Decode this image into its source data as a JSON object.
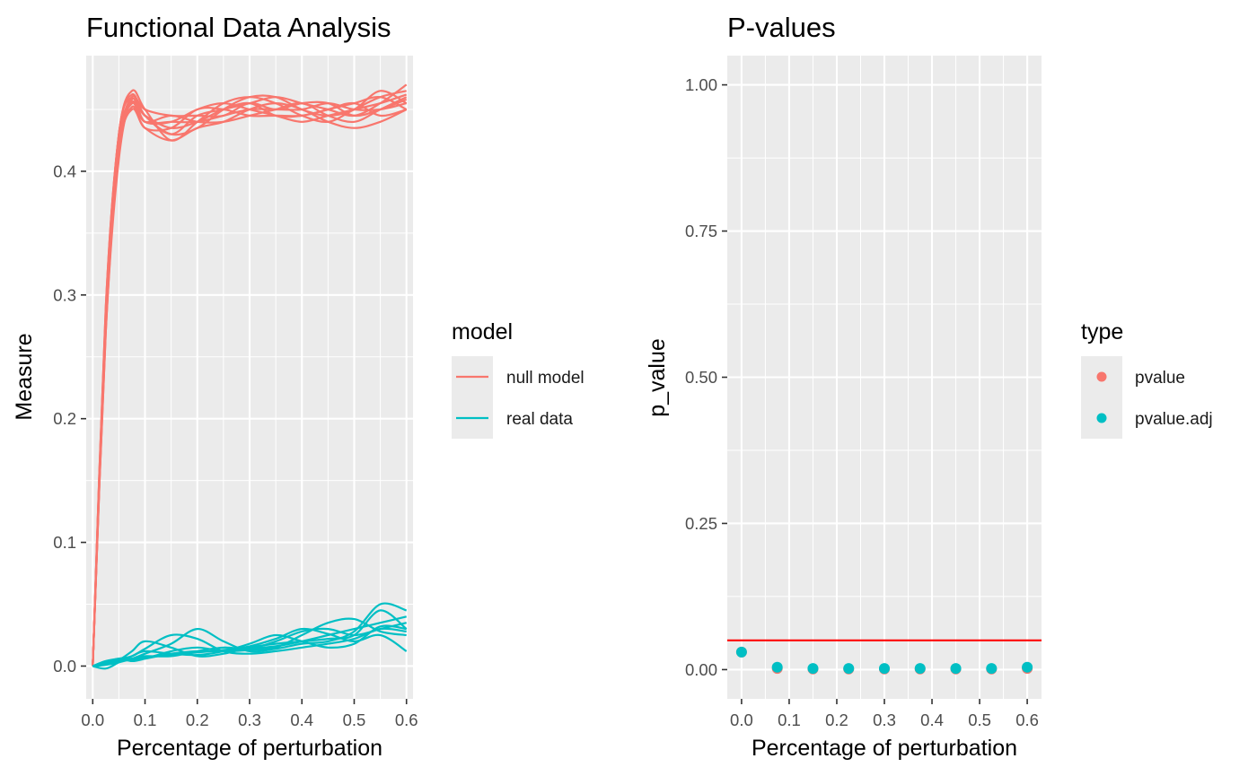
{
  "colors": {
    "null_model": "#F8766D",
    "real_data": "#00BFC4",
    "threshold": "#FF0000",
    "panel_bg": "#EBEBEB",
    "grid": "#FFFFFF"
  },
  "chart_data": [
    {
      "type": "line",
      "title": "Functional Data Analysis",
      "xlabel": "Percentage of perturbation",
      "ylabel": "Measure",
      "xlim": [
        -0.0125,
        0.6125
      ],
      "ylim": [
        -0.0265,
        0.4935
      ],
      "x_ticks": [
        "0.0",
        "0.1",
        "0.2",
        "0.3",
        "0.4",
        "0.5",
        "0.6"
      ],
      "x_tick_values": [
        0,
        0.1,
        0.2,
        0.3,
        0.4,
        0.5,
        0.6
      ],
      "y_ticks": [
        "0.0",
        "0.1",
        "0.2",
        "0.3",
        "0.4"
      ],
      "y_tick_values": [
        0,
        0.1,
        0.2,
        0.3,
        0.4
      ],
      "grid": true,
      "legend": {
        "title": "model",
        "position": "right",
        "entries": [
          {
            "label": "null model",
            "color": "#F8766D"
          },
          {
            "label": "real data",
            "color": "#00BFC4"
          }
        ]
      },
      "series": [
        {
          "group": "null model",
          "x": [
            0,
            0.025,
            0.05,
            0.075,
            0.1,
            0.15,
            0.2,
            0.25,
            0.3,
            0.35,
            0.4,
            0.45,
            0.5,
            0.55,
            0.6
          ],
          "y": [
            0,
            0.29,
            0.43,
            0.465,
            0.45,
            0.425,
            0.44,
            0.455,
            0.46,
            0.455,
            0.445,
            0.44,
            0.45,
            0.46,
            0.465
          ]
        },
        {
          "group": "null model",
          "x": [
            0,
            0.025,
            0.05,
            0.075,
            0.1,
            0.15,
            0.2,
            0.25,
            0.3,
            0.35,
            0.4,
            0.45,
            0.5,
            0.55,
            0.6
          ],
          "y": [
            0,
            0.28,
            0.42,
            0.46,
            0.445,
            0.43,
            0.445,
            0.45,
            0.455,
            0.46,
            0.455,
            0.45,
            0.445,
            0.455,
            0.47
          ]
        },
        {
          "group": "null model",
          "x": [
            0,
            0.025,
            0.05,
            0.075,
            0.1,
            0.15,
            0.2,
            0.25,
            0.3,
            0.35,
            0.4,
            0.45,
            0.5,
            0.55,
            0.6
          ],
          "y": [
            0,
            0.27,
            0.41,
            0.458,
            0.44,
            0.44,
            0.44,
            0.445,
            0.45,
            0.45,
            0.45,
            0.455,
            0.45,
            0.45,
            0.455
          ]
        },
        {
          "group": "null model",
          "x": [
            0,
            0.025,
            0.05,
            0.075,
            0.1,
            0.15,
            0.2,
            0.25,
            0.3,
            0.35,
            0.4,
            0.45,
            0.5,
            0.55,
            0.6
          ],
          "y": [
            0,
            0.285,
            0.425,
            0.455,
            0.44,
            0.445,
            0.44,
            0.44,
            0.445,
            0.45,
            0.455,
            0.445,
            0.44,
            0.45,
            0.46
          ]
        },
        {
          "group": "null model",
          "x": [
            0,
            0.025,
            0.05,
            0.075,
            0.1,
            0.15,
            0.2,
            0.25,
            0.3,
            0.35,
            0.4,
            0.45,
            0.5,
            0.55,
            0.6
          ],
          "y": [
            0,
            0.275,
            0.415,
            0.452,
            0.435,
            0.435,
            0.45,
            0.45,
            0.445,
            0.445,
            0.445,
            0.45,
            0.455,
            0.445,
            0.45
          ]
        },
        {
          "group": "null model",
          "x": [
            0,
            0.025,
            0.05,
            0.075,
            0.1,
            0.15,
            0.2,
            0.25,
            0.3,
            0.35,
            0.4,
            0.45,
            0.5,
            0.55,
            0.6
          ],
          "y": [
            0,
            0.29,
            0.43,
            0.462,
            0.445,
            0.43,
            0.435,
            0.45,
            0.46,
            0.46,
            0.45,
            0.445,
            0.45,
            0.465,
            0.455
          ]
        },
        {
          "group": "null model",
          "x": [
            0,
            0.025,
            0.05,
            0.075,
            0.1,
            0.15,
            0.2,
            0.25,
            0.3,
            0.35,
            0.4,
            0.45,
            0.5,
            0.55,
            0.6
          ],
          "y": [
            0,
            0.28,
            0.42,
            0.456,
            0.44,
            0.44,
            0.45,
            0.455,
            0.45,
            0.445,
            0.44,
            0.445,
            0.45,
            0.455,
            0.462
          ]
        },
        {
          "group": "null model",
          "x": [
            0,
            0.025,
            0.05,
            0.075,
            0.1,
            0.15,
            0.2,
            0.25,
            0.3,
            0.35,
            0.4,
            0.45,
            0.5,
            0.55,
            0.6
          ],
          "y": [
            0,
            0.27,
            0.415,
            0.45,
            0.435,
            0.425,
            0.435,
            0.44,
            0.45,
            0.455,
            0.45,
            0.44,
            0.435,
            0.44,
            0.45
          ]
        },
        {
          "group": "null model",
          "x": [
            0,
            0.025,
            0.05,
            0.075,
            0.1,
            0.15,
            0.2,
            0.25,
            0.3,
            0.35,
            0.4,
            0.45,
            0.5,
            0.55,
            0.6
          ],
          "y": [
            0,
            0.285,
            0.43,
            0.46,
            0.45,
            0.445,
            0.445,
            0.445,
            0.455,
            0.45,
            0.455,
            0.455,
            0.445,
            0.45,
            0.458
          ]
        },
        {
          "group": "null model",
          "x": [
            0,
            0.025,
            0.05,
            0.075,
            0.1,
            0.15,
            0.2,
            0.25,
            0.3,
            0.35,
            0.4,
            0.45,
            0.5,
            0.55,
            0.6
          ],
          "y": [
            0,
            0.275,
            0.42,
            0.455,
            0.445,
            0.435,
            0.44,
            0.45,
            0.455,
            0.445,
            0.445,
            0.45,
            0.455,
            0.46,
            0.45
          ]
        },
        {
          "group": "real data",
          "x": [
            0,
            0.025,
            0.05,
            0.075,
            0.1,
            0.15,
            0.2,
            0.25,
            0.3,
            0.35,
            0.4,
            0.45,
            0.5,
            0.55,
            0.6
          ],
          "y": [
            0,
            0.002,
            0.004,
            0.005,
            0.006,
            0.01,
            0.012,
            0.012,
            0.014,
            0.016,
            0.02,
            0.025,
            0.03,
            0.035,
            0.04
          ]
        },
        {
          "group": "real data",
          "x": [
            0,
            0.025,
            0.05,
            0.075,
            0.1,
            0.15,
            0.2,
            0.25,
            0.3,
            0.35,
            0.4,
            0.45,
            0.5,
            0.55,
            0.6
          ],
          "y": [
            0,
            0.004,
            0.006,
            0.008,
            0.014,
            0.025,
            0.022,
            0.012,
            0.01,
            0.012,
            0.015,
            0.018,
            0.022,
            0.03,
            0.028
          ]
        },
        {
          "group": "real data",
          "x": [
            0,
            0.025,
            0.05,
            0.075,
            0.1,
            0.15,
            0.2,
            0.25,
            0.3,
            0.35,
            0.4,
            0.45,
            0.5,
            0.55,
            0.6
          ],
          "y": [
            0,
            0.002,
            0.005,
            0.012,
            0.02,
            0.015,
            0.008,
            0.01,
            0.015,
            0.018,
            0.02,
            0.022,
            0.025,
            0.045,
            0.03
          ]
        },
        {
          "group": "real data",
          "x": [
            0,
            0.025,
            0.05,
            0.075,
            0.1,
            0.15,
            0.2,
            0.25,
            0.3,
            0.35,
            0.4,
            0.45,
            0.5,
            0.55,
            0.6
          ],
          "y": [
            0,
            0.003,
            0.004,
            0.006,
            0.008,
            0.008,
            0.012,
            0.015,
            0.014,
            0.02,
            0.028,
            0.03,
            0.025,
            0.03,
            0.035
          ]
        },
        {
          "group": "real data",
          "x": [
            0,
            0.025,
            0.05,
            0.075,
            0.1,
            0.15,
            0.2,
            0.25,
            0.3,
            0.35,
            0.4,
            0.45,
            0.5,
            0.55,
            0.6
          ],
          "y": [
            0,
            0.001,
            0.003,
            0.006,
            0.01,
            0.018,
            0.03,
            0.02,
            0.012,
            0.014,
            0.018,
            0.02,
            0.028,
            0.05,
            0.045
          ]
        },
        {
          "group": "real data",
          "x": [
            0,
            0.025,
            0.05,
            0.075,
            0.1,
            0.15,
            0.2,
            0.25,
            0.3,
            0.35,
            0.4,
            0.45,
            0.5,
            0.55,
            0.6
          ],
          "y": [
            0,
            0.004,
            0.005,
            0.006,
            0.007,
            0.009,
            0.011,
            0.013,
            0.016,
            0.022,
            0.03,
            0.026,
            0.02,
            0.025,
            0.012
          ]
        },
        {
          "group": "real data",
          "x": [
            0,
            0.025,
            0.05,
            0.075,
            0.1,
            0.15,
            0.2,
            0.25,
            0.3,
            0.35,
            0.4,
            0.45,
            0.5,
            0.55,
            0.6
          ],
          "y": [
            0,
            -0.002,
            0.003,
            0.008,
            0.012,
            0.01,
            0.009,
            0.012,
            0.018,
            0.025,
            0.02,
            0.015,
            0.018,
            0.032,
            0.03
          ]
        },
        {
          "group": "real data",
          "x": [
            0,
            0.025,
            0.05,
            0.075,
            0.1,
            0.15,
            0.2,
            0.25,
            0.3,
            0.35,
            0.4,
            0.45,
            0.5,
            0.55,
            0.6
          ],
          "y": [
            0,
            0.003,
            0.006,
            0.004,
            0.006,
            0.012,
            0.015,
            0.012,
            0.013,
            0.015,
            0.025,
            0.035,
            0.038,
            0.028,
            0.025
          ]
        }
      ]
    },
    {
      "type": "scatter",
      "title": "P-values",
      "xlabel": "Percentage of perturbation",
      "ylabel": "p_value",
      "xlim": [
        -0.03,
        0.63
      ],
      "ylim": [
        -0.05,
        1.05
      ],
      "x_ticks": [
        "0.0",
        "0.1",
        "0.2",
        "0.3",
        "0.4",
        "0.5",
        "0.6"
      ],
      "x_tick_values": [
        0,
        0.1,
        0.2,
        0.3,
        0.4,
        0.5,
        0.6
      ],
      "y_ticks": [
        "0.00",
        "0.25",
        "0.50",
        "0.75",
        "1.00"
      ],
      "y_tick_values": [
        0,
        0.25,
        0.5,
        0.75,
        1.0
      ],
      "grid": true,
      "hline": {
        "y": 0.05,
        "color": "#FF0000"
      },
      "legend": {
        "title": "type",
        "position": "right",
        "entries": [
          {
            "label": "pvalue",
            "color": "#F8766D"
          },
          {
            "label": "pvalue.adj",
            "color": "#00BFC4"
          }
        ]
      },
      "series": [
        {
          "name": "pvalue",
          "x": [
            0,
            0.075,
            0.15,
            0.225,
            0.3,
            0.375,
            0.45,
            0.525,
            0.6
          ],
          "y": [
            0.03,
            0.002,
            0.001,
            0.001,
            0.001,
            0.001,
            0.001,
            0.001,
            0.002
          ]
        },
        {
          "name": "pvalue.adj",
          "x": [
            0,
            0.075,
            0.15,
            0.225,
            0.3,
            0.375,
            0.45,
            0.525,
            0.6
          ],
          "y": [
            0.03,
            0.004,
            0.002,
            0.002,
            0.002,
            0.002,
            0.002,
            0.002,
            0.004
          ]
        }
      ]
    }
  ]
}
